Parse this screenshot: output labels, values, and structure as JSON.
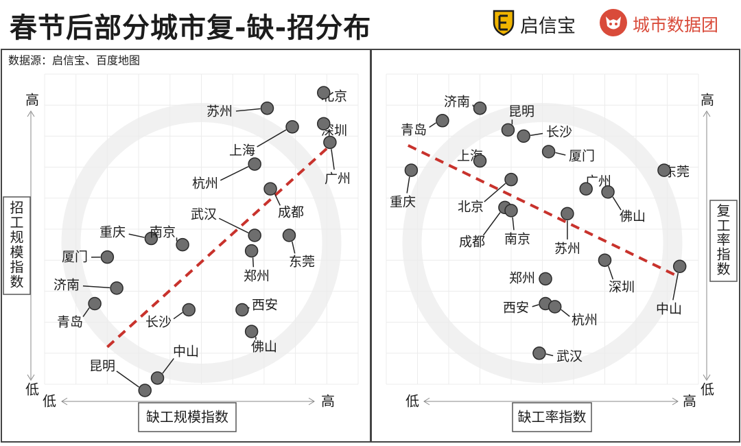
{
  "header": {
    "title": "春节后部分城市复-缺-招分布",
    "brand1": {
      "name": "启信宝",
      "icon": "shield-logo-icon",
      "color": "#f0b400"
    },
    "brand2": {
      "name": "城市数据团",
      "icon": "fox-logo-icon",
      "color": "#d94b3a"
    }
  },
  "source": "数据源：启信宝、百度地图",
  "colors": {
    "trend": "#c8322c",
    "point": "#6e6e6e",
    "border": "#444444"
  },
  "chart_data": [
    {
      "type": "scatter",
      "xlabel": "缺工规模指数",
      "ylabel": "招工规模指数",
      "x_low": "低",
      "x_high": "高",
      "y_low": "低",
      "y_high": "高",
      "xlim": [
        0,
        10
      ],
      "ylim": [
        0,
        10
      ],
      "trendline": [
        [
          2.0,
          1.2
        ],
        [
          9.0,
          7.6
        ]
      ],
      "points": [
        {
          "label": "北京",
          "x": 8.9,
          "y": 9.4
        },
        {
          "label": "苏州",
          "x": 7.1,
          "y": 8.9
        },
        {
          "label": "深圳",
          "x": 8.9,
          "y": 8.4
        },
        {
          "label": "上海",
          "x": 7.9,
          "y": 8.3
        },
        {
          "label": "广州",
          "x": 9.1,
          "y": 7.8
        },
        {
          "label": "杭州",
          "x": 6.7,
          "y": 7.1
        },
        {
          "label": "成都",
          "x": 7.2,
          "y": 6.3
        },
        {
          "label": "武汉",
          "x": 6.7,
          "y": 4.8
        },
        {
          "label": "东莞",
          "x": 7.8,
          "y": 4.8
        },
        {
          "label": "郑州",
          "x": 6.6,
          "y": 4.3
        },
        {
          "label": "重庆",
          "x": 3.4,
          "y": 4.7
        },
        {
          "label": "南京",
          "x": 4.4,
          "y": 4.5
        },
        {
          "label": "厦门",
          "x": 2.0,
          "y": 4.1
        },
        {
          "label": "济南",
          "x": 2.3,
          "y": 3.1
        },
        {
          "label": "青岛",
          "x": 1.6,
          "y": 2.6
        },
        {
          "label": "长沙",
          "x": 4.6,
          "y": 2.4
        },
        {
          "label": "西安",
          "x": 6.3,
          "y": 2.4
        },
        {
          "label": "佛山",
          "x": 6.6,
          "y": 1.7
        },
        {
          "label": "中山",
          "x": 3.6,
          "y": 0.2
        },
        {
          "label": "昆明",
          "x": 3.2,
          "y": -0.2
        }
      ]
    },
    {
      "type": "scatter",
      "xlabel": "缺工率指数",
      "ylabel": "复工率指数",
      "x_low": "低",
      "x_high": "高",
      "y_low": "低",
      "y_high": "高",
      "xlim": [
        0,
        10
      ],
      "ylim": [
        0,
        10
      ],
      "trendline": [
        [
          0.7,
          7.7
        ],
        [
          9.3,
          3.5
        ]
      ],
      "points": [
        {
          "label": "济南",
          "x": 3.0,
          "y": 8.9
        },
        {
          "label": "青岛",
          "x": 1.8,
          "y": 8.5
        },
        {
          "label": "昆明",
          "x": 3.9,
          "y": 8.2
        },
        {
          "label": "长沙",
          "x": 4.4,
          "y": 8.0
        },
        {
          "label": "厦门",
          "x": 5.2,
          "y": 7.5
        },
        {
          "label": "上海",
          "x": 3.0,
          "y": 7.2
        },
        {
          "label": "重庆",
          "x": 0.8,
          "y": 6.9
        },
        {
          "label": "东莞",
          "x": 8.9,
          "y": 6.9
        },
        {
          "label": "北京",
          "x": 4.0,
          "y": 6.6
        },
        {
          "label": "广州",
          "x": 6.4,
          "y": 6.3
        },
        {
          "label": "佛山",
          "x": 7.1,
          "y": 6.2
        },
        {
          "label": "成都",
          "x": 3.8,
          "y": 5.7
        },
        {
          "label": "南京",
          "x": 4.0,
          "y": 5.6
        },
        {
          "label": "苏州",
          "x": 5.8,
          "y": 5.5
        },
        {
          "label": "深圳",
          "x": 7.0,
          "y": 4.0
        },
        {
          "label": "中山",
          "x": 9.4,
          "y": 3.8
        },
        {
          "label": "郑州",
          "x": 5.1,
          "y": 3.4
        },
        {
          "label": "西安",
          "x": 5.1,
          "y": 2.6
        },
        {
          "label": "杭州",
          "x": 5.4,
          "y": 2.5
        },
        {
          "label": "武汉",
          "x": 4.9,
          "y": 1.0
        }
      ]
    }
  ]
}
